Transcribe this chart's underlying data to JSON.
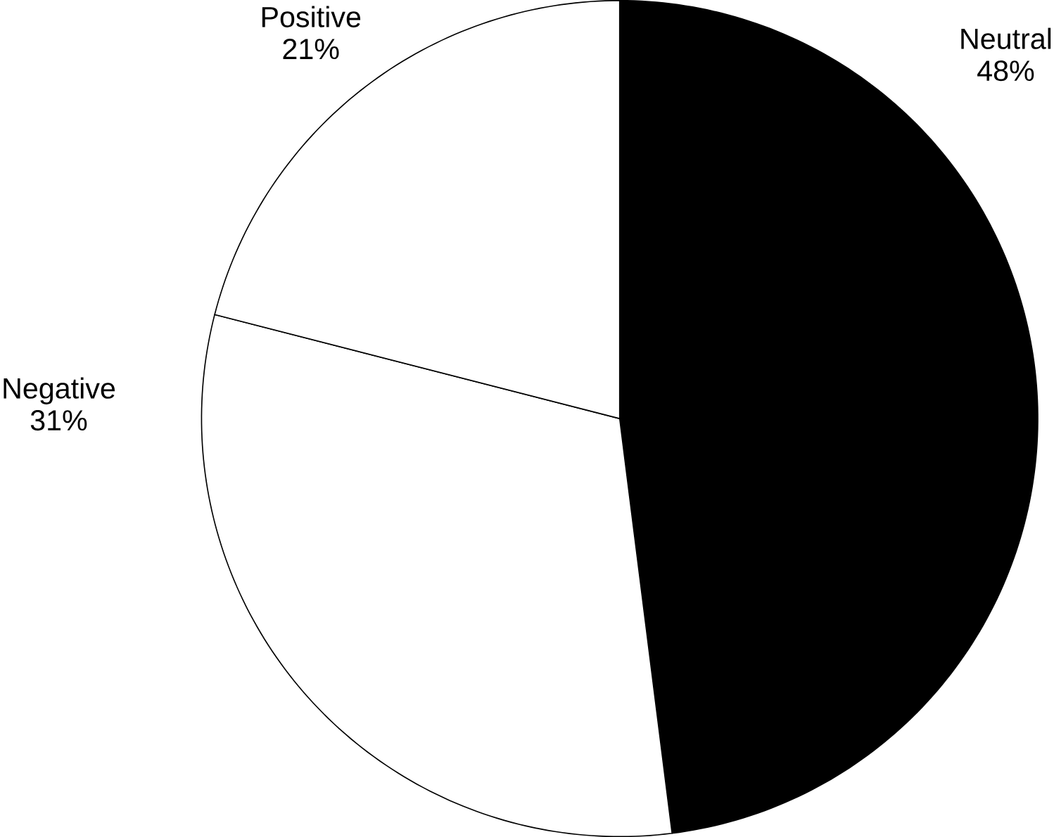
{
  "chart_data": {
    "type": "pie",
    "categories": [
      "Neutral",
      "Negative",
      "Positive"
    ],
    "values": [
      48,
      31,
      21
    ],
    "colors": [
      "#000000",
      "#ffffff",
      "#ffffff"
    ],
    "value_labels": [
      "48%",
      "31%",
      "21%"
    ]
  }
}
